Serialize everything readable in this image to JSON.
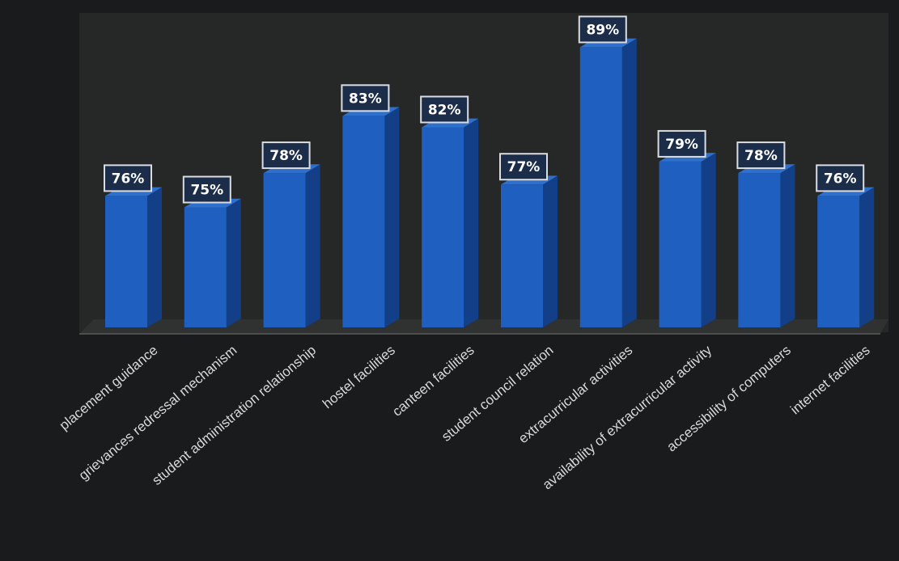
{
  "chart_data": {
    "type": "bar",
    "categories": [
      "placement guidance",
      "grievances redressal mechanism",
      "student administration relationship",
      "hostel facilities",
      "canteen facilities",
      "student council relation",
      "extracurricular activities",
      "availability of extracurricular activity",
      "accessibility of computers",
      "internet facilities"
    ],
    "values": [
      76,
      75,
      78,
      83,
      82,
      77,
      89,
      79,
      78,
      76
    ],
    "data_labels": [
      "76%",
      "75%",
      "78%",
      "83%",
      "82%",
      "77%",
      "89%",
      "79%",
      "78%",
      "76%"
    ],
    "title": "",
    "xlabel": "",
    "ylabel": "",
    "grid": false,
    "legend": "none",
    "style": "3d-column",
    "colors": {
      "background": "#1a1b1c",
      "plot_area": "#262827",
      "bar_front": "#1e5fc0",
      "bar_side": "#123f87",
      "bar_top": "#2f70cc",
      "label_box": "#1c2d4a",
      "label_border": "#d9dde3",
      "label_text": "#ffffff",
      "tick_text": "#d8d8d8",
      "axis_line": "#5a5c5b"
    }
  }
}
